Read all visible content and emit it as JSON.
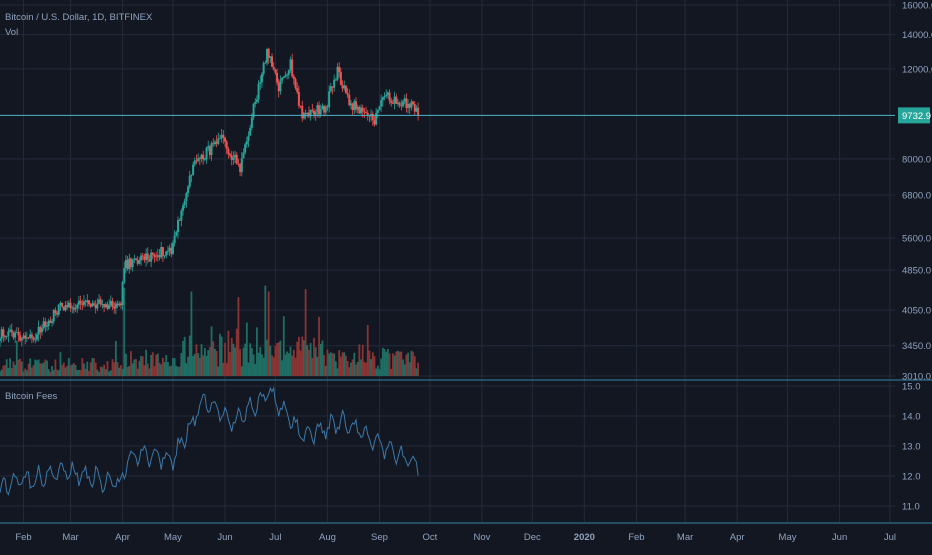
{
  "header": {
    "symbol": "Bitcoin / U.S. Dollar, 1D, BITFINEX",
    "volume_label": "Vol",
    "fees_label": "Bitcoin Fees"
  },
  "colors": {
    "background": "#131722",
    "grid": "#232a3b",
    "up": "#26a69a",
    "down": "#ef5350",
    "volume_up": "#1f6e63",
    "volume_down": "#8a3434",
    "fees_line": "#3c78a8",
    "price_line": "#4bb6c9",
    "axis_text": "#8fa3bf"
  },
  "chart_data": [
    {
      "type": "candlestick",
      "title": "Bitcoin / U.S. Dollar, 1D, BITFINEX",
      "scale": "log",
      "grid": true,
      "y_ticks": [
        "16000.0",
        "14000.0",
        "12000.0",
        "9732.9",
        "8000.0",
        "6800.0",
        "5600.0",
        "4850.0",
        "4050.0",
        "3450.0",
        "3010.0"
      ],
      "last_price": "9732.9",
      "x_range": [
        "2019-01-18",
        "2020-07-04"
      ],
      "x_ticks": [
        "Feb",
        "Mar",
        "Apr",
        "May",
        "Jun",
        "Jul",
        "Aug",
        "Sep",
        "Oct",
        "Nov",
        "Dec",
        "2020",
        "Feb",
        "Mar",
        "Apr",
        "May",
        "Jun",
        "Jul"
      ],
      "x_tick_dates": [
        "2019-02-01",
        "2019-03-01",
        "2019-04-01",
        "2019-05-01",
        "2019-06-01",
        "2019-07-01",
        "2019-08-01",
        "2019-09-01",
        "2019-10-01",
        "2019-11-01",
        "2019-12-01",
        "2020-01-01",
        "2020-02-01",
        "2020-03-01",
        "2020-04-01",
        "2020-05-01",
        "2020-06-01",
        "2020-07-01"
      ],
      "key_points": [
        {
          "date": "2019-01-18",
          "close": 3650
        },
        {
          "date": "2019-02-08",
          "close": 3600
        },
        {
          "date": "2019-02-24",
          "close": 4150
        },
        {
          "date": "2019-03-31",
          "close": 4150
        },
        {
          "date": "2019-04-02",
          "close": 4950
        },
        {
          "date": "2019-04-30",
          "close": 5350
        },
        {
          "date": "2019-05-14",
          "close": 7900
        },
        {
          "date": "2019-05-30",
          "close": 8700
        },
        {
          "date": "2019-06-10",
          "close": 7700
        },
        {
          "date": "2019-06-26",
          "close": 13000
        },
        {
          "date": "2019-07-03",
          "close": 11000
        },
        {
          "date": "2019-07-10",
          "close": 12300
        },
        {
          "date": "2019-07-17",
          "close": 9700
        },
        {
          "date": "2019-07-31",
          "close": 10100
        },
        {
          "date": "2019-08-07",
          "close": 11900
        },
        {
          "date": "2019-08-14",
          "close": 10300
        },
        {
          "date": "2019-08-29",
          "close": 9500
        },
        {
          "date": "2019-09-04",
          "close": 10600
        },
        {
          "date": "2019-09-20",
          "close": 10200
        },
        {
          "date": "2019-09-24",
          "close": 9732.9
        }
      ]
    },
    {
      "type": "bar",
      "title": "Vol",
      "note": "daily volume histogram, colored by candle direction",
      "peak_dates": [
        "2019-04-02",
        "2019-05-12",
        "2019-06-25",
        "2019-06-27"
      ]
    },
    {
      "type": "line",
      "title": "Bitcoin Fees",
      "y_ticks": [
        "15.0",
        "14.0",
        "13.0",
        "12.0",
        "11.0"
      ],
      "ylim": [
        10.5,
        15.0
      ],
      "key_points": [
        {
          "date": "2019-01-18",
          "value": 11.6
        },
        {
          "date": "2019-02-26",
          "value": 12.2
        },
        {
          "date": "2019-03-31",
          "value": 11.7
        },
        {
          "date": "2019-04-04",
          "value": 12.7
        },
        {
          "date": "2019-05-01",
          "value": 12.6
        },
        {
          "date": "2019-05-20",
          "value": 14.6
        },
        {
          "date": "2019-06-06",
          "value": 13.8
        },
        {
          "date": "2019-06-27",
          "value": 14.8
        },
        {
          "date": "2019-07-18",
          "value": 13.3
        },
        {
          "date": "2019-08-10",
          "value": 13.8
        },
        {
          "date": "2019-09-24",
          "value": 12.3
        }
      ]
    }
  ]
}
